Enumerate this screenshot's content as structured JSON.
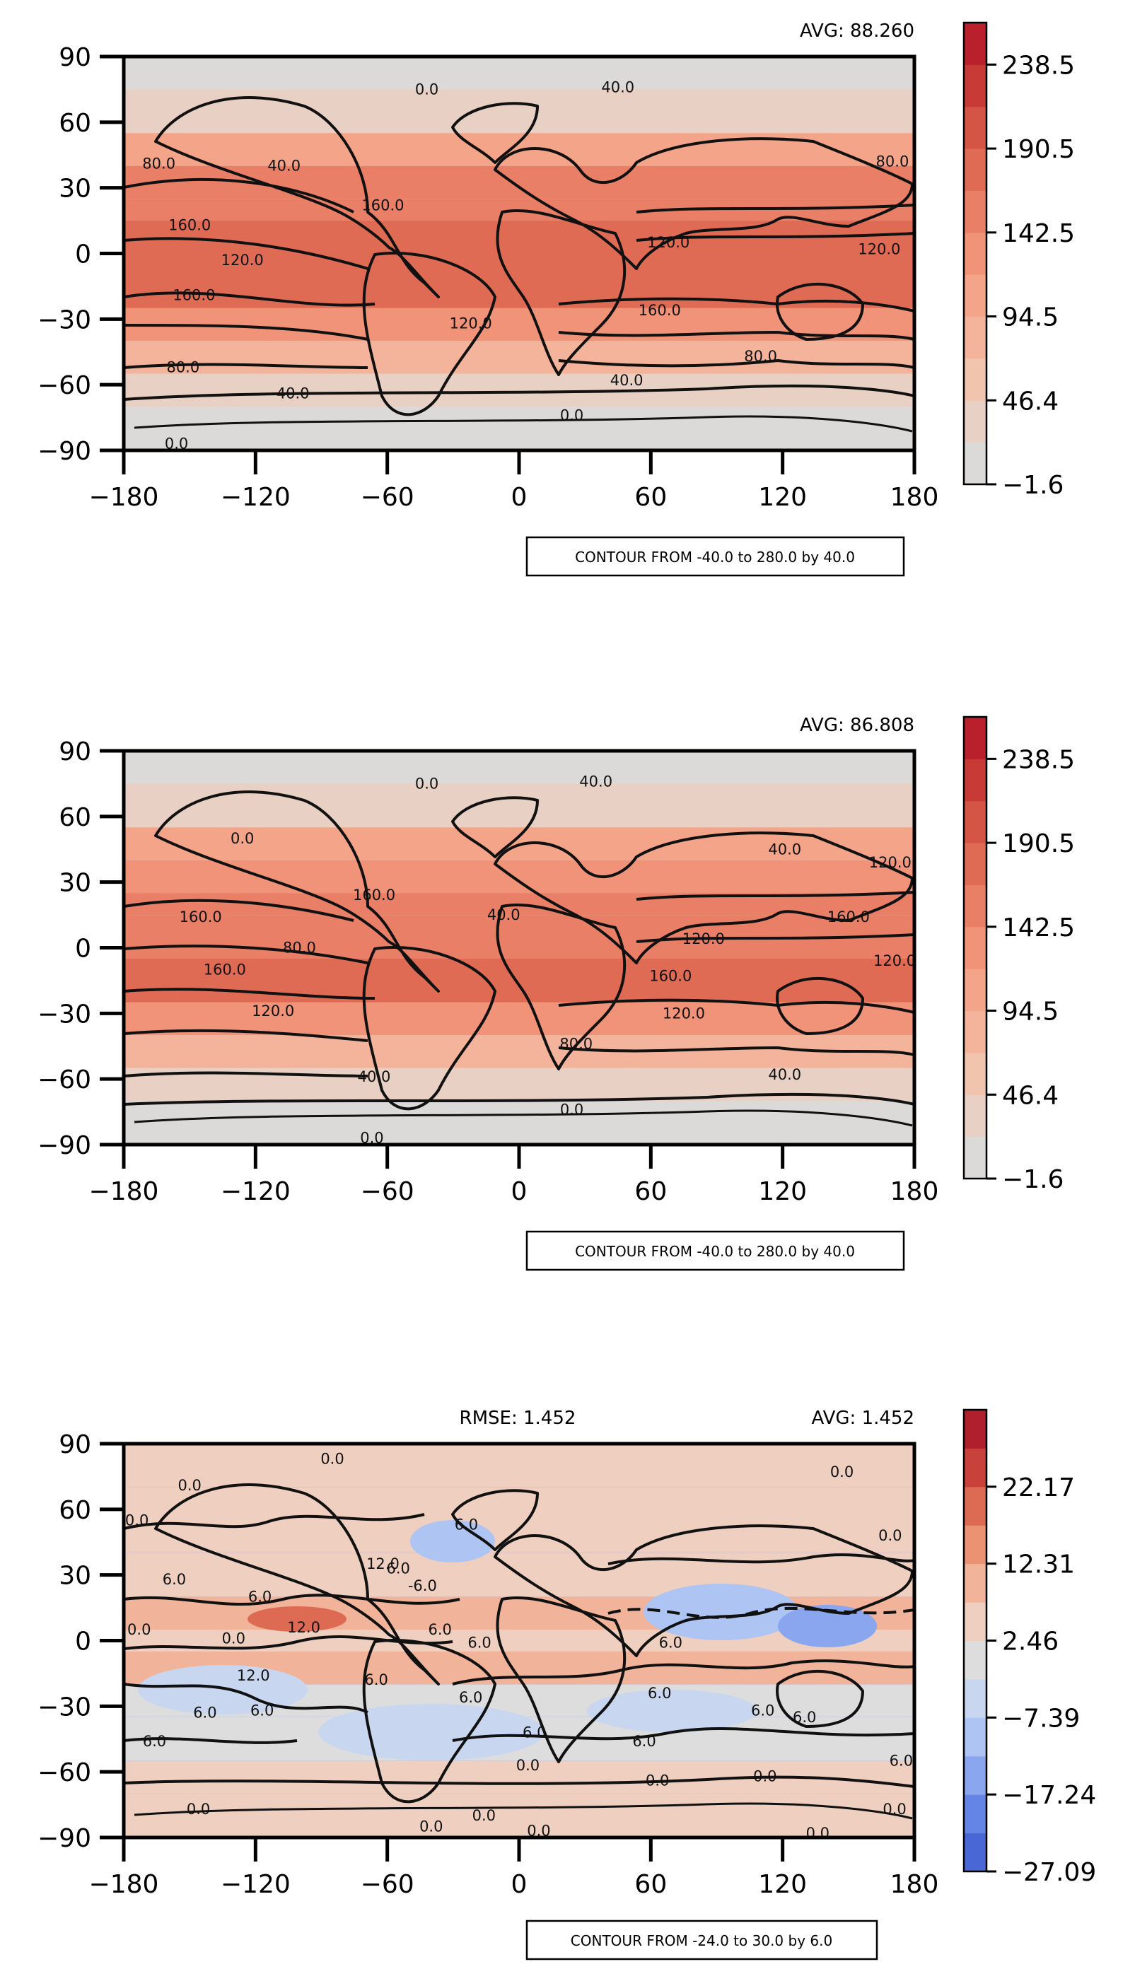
{
  "chart_data": [
    {
      "type": "heatmap",
      "avg_label": "AVG: 88.260",
      "rmse_label": "",
      "contour_note": "CONTOUR FROM -40.0 to 280.0 by 40.0",
      "xlim": [
        -180,
        180
      ],
      "ylim": [
        -90,
        90
      ],
      "x_ticks": [
        "−180",
        "−120",
        "−60",
        "0",
        "60",
        "120",
        "180"
      ],
      "y_ticks": [
        "90",
        "60",
        "30",
        "0",
        "−30",
        "−60",
        "−90"
      ],
      "colorbar_range": [
        -1.6,
        262.0
      ],
      "colorbar_ticks": [
        "238.5",
        "190.5",
        "142.5",
        "94.5",
        "46.4",
        "−1.6"
      ],
      "colorbar_colors": [
        "#dcdad8",
        "#e9d0c4",
        "#f0c4ad",
        "#f4b49b",
        "#f4a488",
        "#f09378",
        "#e87f66",
        "#df6b55",
        "#d45545",
        "#c83a36",
        "#b9202c"
      ],
      "field_bands": [
        {
          "lat": [
            75,
            90
          ],
          "value": 10
        },
        {
          "lat": [
            55,
            75
          ],
          "value": 40
        },
        {
          "lat": [
            40,
            55
          ],
          "value": 110
        },
        {
          "lat": [
            25,
            40
          ],
          "value": 150
        },
        {
          "lat": [
            15,
            25
          ],
          "value": 165
        },
        {
          "lat": [
            -5,
            15
          ],
          "value": 175
        },
        {
          "lat": [
            -25,
            -5
          ],
          "value": 185
        },
        {
          "lat": [
            -40,
            -25
          ],
          "value": 140
        },
        {
          "lat": [
            -55,
            -40
          ],
          "value": 90
        },
        {
          "lat": [
            -70,
            -55
          ],
          "value": 40
        },
        {
          "lat": [
            -90,
            -70
          ],
          "value": 5
        }
      ],
      "contour_labels": [
        {
          "text": "0.0",
          "lon": -42,
          "lat": 75
        },
        {
          "text": "40.0",
          "lon": 45,
          "lat": 76
        },
        {
          "text": "80.0",
          "lon": -164,
          "lat": 41
        },
        {
          "text": "40.0",
          "lon": -107,
          "lat": 40
        },
        {
          "text": "80.0",
          "lon": 170,
          "lat": 42
        },
        {
          "text": "160.0",
          "lon": -150,
          "lat": 13
        },
        {
          "text": "160.0",
          "lon": -62,
          "lat": 22
        },
        {
          "text": "120.0",
          "lon": -126,
          "lat": -3
        },
        {
          "text": "120.0",
          "lon": 68,
          "lat": 5
        },
        {
          "text": "120.0",
          "lon": 164,
          "lat": 2
        },
        {
          "text": "160.0",
          "lon": -148,
          "lat": -19
        },
        {
          "text": "160.0",
          "lon": 64,
          "lat": -26
        },
        {
          "text": "120.0",
          "lon": -22,
          "lat": -32
        },
        {
          "text": "80.0",
          "lon": -153,
          "lat": -52
        },
        {
          "text": "80.0",
          "lon": 110,
          "lat": -47
        },
        {
          "text": "40.0",
          "lon": -103,
          "lat": -64
        },
        {
          "text": "40.0",
          "lon": 49,
          "lat": -58
        },
        {
          "text": "0.0",
          "lon": 24,
          "lat": -74
        },
        {
          "text": "0.0",
          "lon": -156,
          "lat": -87
        }
      ]
    },
    {
      "type": "heatmap",
      "avg_label": "AVG: 86.808",
      "rmse_label": "",
      "contour_note": "CONTOUR FROM -40.0 to 280.0 by 40.0",
      "xlim": [
        -180,
        180
      ],
      "ylim": [
        -90,
        90
      ],
      "x_ticks": [
        "−180",
        "−120",
        "−60",
        "0",
        "60",
        "120",
        "180"
      ],
      "y_ticks": [
        "90",
        "60",
        "30",
        "0",
        "−30",
        "−60",
        "−90"
      ],
      "colorbar_range": [
        -1.6,
        262.0
      ],
      "colorbar_ticks": [
        "238.5",
        "190.5",
        "142.5",
        "94.5",
        "46.4",
        "−1.6"
      ],
      "colorbar_colors": [
        "#dcdad8",
        "#e9d0c4",
        "#f0c4ad",
        "#f4b49b",
        "#f4a488",
        "#f09378",
        "#e87f66",
        "#df6b55",
        "#d45545",
        "#c83a36",
        "#b9202c"
      ],
      "field_bands": [
        {
          "lat": [
            75,
            90
          ],
          "value": 10
        },
        {
          "lat": [
            55,
            75
          ],
          "value": 40
        },
        {
          "lat": [
            40,
            55
          ],
          "value": 100
        },
        {
          "lat": [
            25,
            40
          ],
          "value": 140
        },
        {
          "lat": [
            15,
            25
          ],
          "value": 160
        },
        {
          "lat": [
            -5,
            15
          ],
          "value": 165
        },
        {
          "lat": [
            -25,
            -5
          ],
          "value": 170
        },
        {
          "lat": [
            -40,
            -25
          ],
          "value": 130
        },
        {
          "lat": [
            -55,
            -40
          ],
          "value": 90
        },
        {
          "lat": [
            -70,
            -55
          ],
          "value": 40
        },
        {
          "lat": [
            -90,
            -70
          ],
          "value": 5
        }
      ],
      "contour_labels": [
        {
          "text": "0.0",
          "lon": -42,
          "lat": 75
        },
        {
          "text": "40.0",
          "lon": 35,
          "lat": 76
        },
        {
          "text": "0.0",
          "lon": -126,
          "lat": 50
        },
        {
          "text": "120.0",
          "lon": 169,
          "lat": 39
        },
        {
          "text": "40.0",
          "lon": 121,
          "lat": 45
        },
        {
          "text": "160.0",
          "lon": -66,
          "lat": 24
        },
        {
          "text": "160.0",
          "lon": -145,
          "lat": 14
        },
        {
          "text": "40.0",
          "lon": -7,
          "lat": 15
        },
        {
          "text": "160.0",
          "lon": 150,
          "lat": 14
        },
        {
          "text": "120.0",
          "lon": 84,
          "lat": 4
        },
        {
          "text": "80.0",
          "lon": -100,
          "lat": 0
        },
        {
          "text": "160.0",
          "lon": -134,
          "lat": -10
        },
        {
          "text": "160.0",
          "lon": 69,
          "lat": -13
        },
        {
          "text": "120.0",
          "lon": 171,
          "lat": -6
        },
        {
          "text": "120.0",
          "lon": -112,
          "lat": -29
        },
        {
          "text": "120.0",
          "lon": 75,
          "lat": -30
        },
        {
          "text": "80.0",
          "lon": 26,
          "lat": -44
        },
        {
          "text": "40.0",
          "lon": -66,
          "lat": -59
        },
        {
          "text": "40.0",
          "lon": 121,
          "lat": -58
        },
        {
          "text": "0.0",
          "lon": 24,
          "lat": -74
        },
        {
          "text": "0.0",
          "lon": -67,
          "lat": -87
        }
      ]
    },
    {
      "type": "heatmap",
      "avg_label": "AVG: 1.452",
      "rmse_label": "RMSE: 1.452",
      "contour_note": "CONTOUR FROM -24.0 to 30.0 by 6.0",
      "xlim": [
        -180,
        180
      ],
      "ylim": [
        -90,
        90
      ],
      "x_ticks": [
        "−180",
        "−120",
        "−60",
        "0",
        "60",
        "120",
        "180"
      ],
      "y_ticks": [
        "90",
        "60",
        "30",
        "0",
        "−30",
        "−60",
        "−90"
      ],
      "colorbar_range": [
        -27.09,
        27.09
      ],
      "colorbar_ticks": [
        "22.17",
        "12.31",
        "2.46",
        "−7.39",
        "−17.24",
        "−27.09"
      ],
      "colorbar_colors": [
        "#4a67d6",
        "#6585e6",
        "#89a6ef",
        "#aec4f2",
        "#c9d6ef",
        "#dddddd",
        "#efcfbf",
        "#f1b399",
        "#eb9273",
        "#dd6a52",
        "#c8413a",
        "#b01f2c"
      ],
      "field_bands": [
        {
          "lat": [
            70,
            90
          ],
          "value": 0
        },
        {
          "lat": [
            40,
            70
          ],
          "value": 3
        },
        {
          "lat": [
            20,
            40
          ],
          "value": 1
        },
        {
          "lat": [
            5,
            20
          ],
          "value": 6
        },
        {
          "lat": [
            -5,
            5
          ],
          "value": 4
        },
        {
          "lat": [
            -20,
            -5
          ],
          "value": 5
        },
        {
          "lat": [
            -35,
            -20
          ],
          "value": -2
        },
        {
          "lat": [
            -55,
            -35
          ],
          "value": -4
        },
        {
          "lat": [
            -70,
            -55
          ],
          "value": 1
        },
        {
          "lat": [
            -90,
            -70
          ],
          "value": 0
        }
      ],
      "contour_labels": [
        {
          "text": "0.0",
          "lon": -85,
          "lat": 83
        },
        {
          "text": "0.0",
          "lon": -150,
          "lat": 71
        },
        {
          "text": "0.0",
          "lon": 147,
          "lat": 77
        },
        {
          "text": "0.0",
          "lon": -174,
          "lat": 55
        },
        {
          "text": "0.0",
          "lon": 169,
          "lat": 48
        },
        {
          "text": "6.0",
          "lon": -24,
          "lat": 53
        },
        {
          "text": "6.0",
          "lon": -55,
          "lat": 33
        },
        {
          "text": "6.0",
          "lon": -157,
          "lat": 28
        },
        {
          "text": "-6.0",
          "lon": -44,
          "lat": 25
        },
        {
          "text": "12.0",
          "lon": -62,
          "lat": 35
        },
        {
          "text": "6.0",
          "lon": -118,
          "lat": 20
        },
        {
          "text": "12.0",
          "lon": -98,
          "lat": 6
        },
        {
          "text": "0.0",
          "lon": -173,
          "lat": 5
        },
        {
          "text": "0.0",
          "lon": -130,
          "lat": 1
        },
        {
          "text": "6.0",
          "lon": -36,
          "lat": 5
        },
        {
          "text": "6.0",
          "lon": -18,
          "lat": -1
        },
        {
          "text": "6.0",
          "lon": 69,
          "lat": -1
        },
        {
          "text": "12.0",
          "lon": -121,
          "lat": -16
        },
        {
          "text": "6.0",
          "lon": -65,
          "lat": -18
        },
        {
          "text": "6.0",
          "lon": -22,
          "lat": -26
        },
        {
          "text": "6.0",
          "lon": -143,
          "lat": -33
        },
        {
          "text": "6.0",
          "lon": -117,
          "lat": -32
        },
        {
          "text": "6.0",
          "lon": 64,
          "lat": -24
        },
        {
          "text": "6.0",
          "lon": 111,
          "lat": -32
        },
        {
          "text": "6.0",
          "lon": 130,
          "lat": -35
        },
        {
          "text": "6.0",
          "lon": -166,
          "lat": -46
        },
        {
          "text": "6.0",
          "lon": 7,
          "lat": -42
        },
        {
          "text": "6.0",
          "lon": 57,
          "lat": -46
        },
        {
          "text": "6.0",
          "lon": 174,
          "lat": -55
        },
        {
          "text": "0.0",
          "lon": 4,
          "lat": -57
        },
        {
          "text": "0.0",
          "lon": 63,
          "lat": -64
        },
        {
          "text": "0.0",
          "lon": 112,
          "lat": -62
        },
        {
          "text": "0.0",
          "lon": -146,
          "lat": -77
        },
        {
          "text": "0.0",
          "lon": -16,
          "lat": -80
        },
        {
          "text": "0.0",
          "lon": -40,
          "lat": -85
        },
        {
          "text": "0.0",
          "lon": 9,
          "lat": -87
        },
        {
          "text": "0.0",
          "lon": 136,
          "lat": -88
        },
        {
          "text": "0.0",
          "lon": 171,
          "lat": -77
        }
      ]
    }
  ]
}
